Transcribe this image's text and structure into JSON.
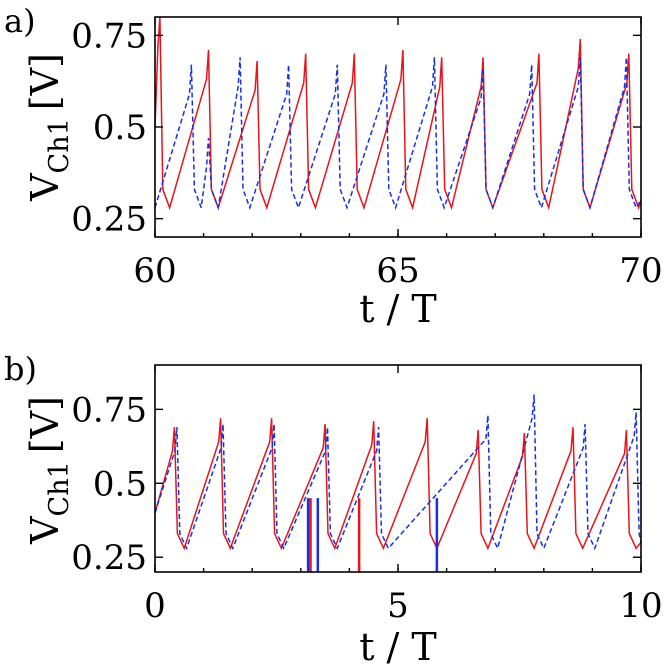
{
  "chart_data": [
    {
      "type": "line",
      "panel_label": "a)",
      "xlabel": "t / T",
      "ylabel_main": "V",
      "ylabel_sub": "Ch1",
      "ylabel_unit": "[V]",
      "xlim": [
        60,
        70
      ],
      "ylim": [
        0.2,
        0.8
      ],
      "xticks": [
        60,
        65,
        70
      ],
      "xtick_labels": [
        "60",
        "65",
        "70"
      ],
      "yticks": [
        0.25,
        0.5,
        0.75
      ],
      "ytick_labels": [
        "0.25",
        "0.5",
        "0.75"
      ],
      "series": [
        {
          "color": "#e8141c",
          "style": "solid",
          "start_value": 0.5,
          "spikes": [
            {
              "t": 60.1,
              "peak": 0.8
            },
            {
              "t": 61.1,
              "peak": 0.71
            },
            {
              "t": 62.1,
              "peak": 0.68
            },
            {
              "t": 63.1,
              "peak": 0.7
            },
            {
              "t": 64.1,
              "peak": 0.7
            },
            {
              "t": 65.1,
              "peak": 0.71
            },
            {
              "t": 65.9,
              "peak": 0.69
            },
            {
              "t": 66.75,
              "peak": 0.69
            },
            {
              "t": 67.9,
              "peak": 0.7
            },
            {
              "t": 68.75,
              "peak": 0.74
            },
            {
              "t": 69.75,
              "peak": 0.7
            }
          ],
          "min_value": 0.28
        },
        {
          "color": "#1a2fe0",
          "style": "dashed",
          "start_value": 0.28,
          "spikes": [
            {
              "t": 60.75,
              "peak": 0.67
            },
            {
              "t": 61.1,
              "peak": 0.47
            },
            {
              "t": 61.75,
              "peak": 0.69
            },
            {
              "t": 62.75,
              "peak": 0.67
            },
            {
              "t": 63.75,
              "peak": 0.67
            },
            {
              "t": 64.75,
              "peak": 0.67
            },
            {
              "t": 65.75,
              "peak": 0.69
            },
            {
              "t": 66.75,
              "peak": 0.66
            },
            {
              "t": 67.75,
              "peak": 0.67
            },
            {
              "t": 68.75,
              "peak": 0.69
            },
            {
              "t": 69.7,
              "peak": 0.69
            }
          ],
          "min_value": 0.28
        }
      ]
    },
    {
      "type": "line",
      "panel_label": "b)",
      "xlabel": "t / T",
      "ylabel_main": "V",
      "ylabel_sub": "Ch1",
      "ylabel_unit": "[V]",
      "xlim": [
        0,
        10
      ],
      "ylim": [
        0.2,
        0.9
      ],
      "xticks": [
        0,
        5,
        10
      ],
      "xtick_labels": [
        "0",
        "5",
        "10"
      ],
      "yticks": [
        0.25,
        0.5,
        0.75
      ],
      "ytick_labels": [
        "0.25",
        "0.5",
        "0.75"
      ],
      "series": [
        {
          "color": "#e8141c",
          "style": "solid",
          "start_value": 0.4,
          "spikes": [
            {
              "t": 0.4,
              "peak": 0.69
            },
            {
              "t": 1.35,
              "peak": 0.72
            },
            {
              "t": 2.4,
              "peak": 0.72
            },
            {
              "t": 3.5,
              "peak": 0.7
            },
            {
              "t": 4.5,
              "peak": 0.71
            },
            {
              "t": 5.6,
              "peak": 0.72
            },
            {
              "t": 6.65,
              "peak": 0.68
            },
            {
              "t": 7.6,
              "peak": 0.67
            },
            {
              "t": 8.6,
              "peak": 0.69
            },
            {
              "t": 9.7,
              "peak": 0.68
            }
          ],
          "min_value": 0.28,
          "drops": [
            {
              "t": 3.2,
              "value": 0.2
            },
            {
              "t": 4.2,
              "value": 0.2
            }
          ]
        },
        {
          "color": "#1a2fe0",
          "style": "dashed",
          "start_value": 0.4,
          "spikes": [
            {
              "t": 0.45,
              "peak": 0.69
            },
            {
              "t": 1.4,
              "peak": 0.7
            },
            {
              "t": 2.45,
              "peak": 0.7
            },
            {
              "t": 3.55,
              "peak": 0.69
            },
            {
              "t": 4.6,
              "peak": 0.69
            },
            {
              "t": 6.85,
              "peak": 0.73
            },
            {
              "t": 7.8,
              "peak": 0.8
            },
            {
              "t": 8.85,
              "peak": 0.7
            },
            {
              "t": 9.9,
              "peak": 0.74
            }
          ],
          "min_value": 0.28,
          "drops": [
            {
              "t": 3.15,
              "value": 0.2
            },
            {
              "t": 3.35,
              "value": 0.2
            },
            {
              "t": 5.8,
              "value": 0.2
            }
          ]
        }
      ]
    }
  ]
}
